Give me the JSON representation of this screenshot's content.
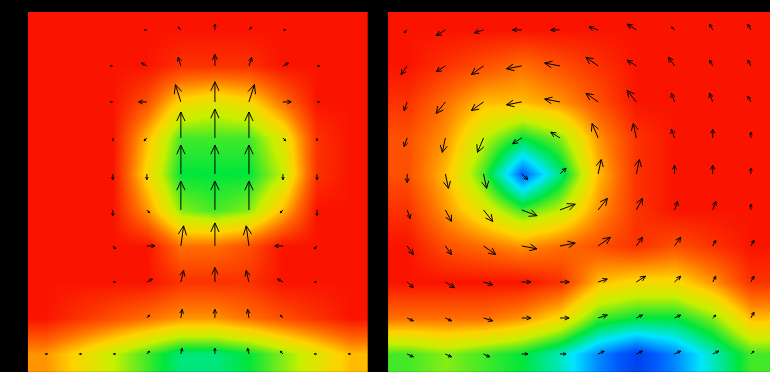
{
  "chart_data": [
    {
      "type": "heatmap",
      "tick_labels": false,
      "grid": false,
      "color": "#000000",
      "xlim": [
        -0.5,
        9.5
      ],
      "ylim": [
        -0.5,
        9.5
      ],
      "zlim": [
        0,
        1
      ],
      "z": [
        [
          0.8,
          0.7,
          0.6,
          0.5,
          0.4,
          0.4,
          0.45,
          0.55,
          0.65,
          0.75
        ],
        [
          1,
          0.95,
          0.9,
          0.85,
          0.8,
          0.8,
          0.85,
          0.9,
          0.95,
          1
        ],
        [
          1,
          1,
          1,
          1,
          0.95,
          0.95,
          0.95,
          1,
          1,
          1
        ],
        [
          1,
          1,
          1,
          1,
          0.85,
          0.85,
          0.9,
          1,
          1,
          1
        ],
        [
          1,
          1,
          1,
          0.8,
          0.55,
          0.5,
          0.55,
          0.75,
          1,
          1
        ],
        [
          1,
          1,
          1,
          0.7,
          0.45,
          0.45,
          0.45,
          0.6,
          0.95,
          1
        ],
        [
          1,
          1,
          1,
          0.75,
          0.5,
          0.5,
          0.5,
          0.65,
          0.95,
          1
        ],
        [
          1,
          1,
          1,
          0.9,
          0.7,
          0.65,
          0.7,
          0.85,
          1,
          1
        ],
        [
          1,
          1,
          1,
          1,
          0.95,
          0.95,
          0.95,
          1,
          1,
          1
        ],
        [
          1,
          1,
          1,
          1,
          1,
          1,
          1,
          1,
          1,
          1
        ]
      ],
      "u": [
        [
          0.1,
          0.1,
          0.1,
          0.1,
          0.05,
          0,
          -0.05,
          -0.1,
          -0.1,
          -0.1
        ],
        [
          0,
          0,
          0,
          0.1,
          0.05,
          0,
          -0.05,
          -0.1,
          0,
          0
        ],
        [
          0,
          0,
          0.1,
          0.2,
          0.1,
          0,
          -0.1,
          -0.2,
          -0.1,
          0
        ],
        [
          0,
          0,
          0.1,
          0.3,
          0.1,
          0,
          -0.1,
          -0.3,
          -0.1,
          0
        ],
        [
          0,
          0,
          0,
          0.1,
          0,
          0,
          0,
          -0.1,
          0,
          0
        ],
        [
          0,
          0,
          0,
          0,
          0,
          0,
          0,
          0,
          0,
          0
        ],
        [
          0,
          0,
          0,
          -0.1,
          0,
          0,
          0,
          0.1,
          0,
          0
        ],
        [
          0,
          0,
          -0.1,
          -0.3,
          -0.2,
          0,
          0.2,
          0.3,
          0.1,
          0
        ],
        [
          0,
          0,
          -0.1,
          -0.2,
          -0.1,
          0,
          0.1,
          0.2,
          0.1,
          0
        ],
        [
          0,
          0,
          0,
          -0.1,
          -0.1,
          0,
          0.1,
          0.1,
          0,
          0
        ]
      ],
      "v": [
        [
          0,
          0,
          0,
          0.1,
          0.2,
          0.2,
          0.2,
          0.1,
          0,
          0
        ],
        [
          0,
          0,
          0,
          0.1,
          0.3,
          0.3,
          0.3,
          0.1,
          0,
          0
        ],
        [
          0,
          0,
          0,
          0.1,
          0.4,
          0.5,
          0.4,
          0.1,
          0,
          0
        ],
        [
          0,
          0,
          -0.1,
          0,
          0.7,
          0.8,
          0.7,
          0,
          -0.1,
          0
        ],
        [
          0,
          0,
          -0.2,
          -0.1,
          1,
          1,
          1,
          -0.1,
          -0.2,
          0
        ],
        [
          0,
          0,
          -0.2,
          -0.2,
          1,
          1,
          1,
          -0.2,
          -0.2,
          0
        ],
        [
          0,
          0,
          -0.1,
          -0.1,
          0.9,
          1,
          0.9,
          -0.1,
          -0.1,
          0
        ],
        [
          0,
          0,
          0,
          0,
          0.6,
          0.7,
          0.6,
          0,
          0,
          0
        ],
        [
          0,
          0,
          0,
          0.1,
          0.3,
          0.4,
          0.3,
          0.1,
          0,
          0
        ],
        [
          0,
          0,
          0,
          0,
          0.1,
          0.2,
          0.1,
          0,
          0,
          0
        ]
      ]
    },
    {
      "type": "heatmap",
      "tick_labels": false,
      "grid": false,
      "color": "#000000",
      "xlim": [
        -0.5,
        9.5
      ],
      "ylim": [
        -0.5,
        9.5
      ],
      "zlim": [
        0,
        1
      ],
      "z": [
        [
          0.5,
          0.55,
          0.5,
          0.45,
          0.35,
          0.2,
          0.1,
          0.2,
          0.35,
          0.5
        ],
        [
          0.85,
          0.85,
          0.85,
          0.8,
          0.7,
          0.5,
          0.45,
          0.45,
          0.55,
          0.75
        ],
        [
          1,
          1,
          1,
          1,
          0.95,
          0.75,
          0.7,
          0.7,
          0.8,
          0.95
        ],
        [
          1,
          0.9,
          0.85,
          0.8,
          0.85,
          0.9,
          0.95,
          0.9,
          0.95,
          1
        ],
        [
          0.95,
          0.8,
          0.65,
          0.5,
          0.6,
          0.8,
          0.95,
          1,
          1,
          1
        ],
        [
          0.9,
          0.75,
          0.5,
          0.15,
          0.4,
          0.75,
          0.95,
          1,
          1,
          1
        ],
        [
          0.9,
          0.8,
          0.6,
          0.45,
          0.55,
          0.8,
          0.95,
          1,
          1,
          1
        ],
        [
          0.95,
          0.85,
          0.75,
          0.75,
          0.8,
          0.9,
          1,
          1,
          1,
          1
        ],
        [
          1,
          0.95,
          0.9,
          0.85,
          0.9,
          0.95,
          1,
          1,
          1,
          1
        ],
        [
          1,
          1,
          1,
          1,
          1,
          1,
          1,
          1,
          1,
          1
        ]
      ],
      "u": [
        [
          0.2,
          0.2,
          0.2,
          0.2,
          0.2,
          0.2,
          0.2,
          0.2,
          0.2,
          0.1
        ],
        [
          0.2,
          0.2,
          0.3,
          0.3,
          0.3,
          0.3,
          0.2,
          0.2,
          0.1,
          0.1
        ],
        [
          0.2,
          0.3,
          0.3,
          0.3,
          0.3,
          0.3,
          0.3,
          0.2,
          0.1,
          0.1
        ],
        [
          0.2,
          0.2,
          0.4,
          0.5,
          0.5,
          0.4,
          0.2,
          0.2,
          0.1,
          0.1
        ],
        [
          0.1,
          0.2,
          0.3,
          0.5,
          0.5,
          0.3,
          0.2,
          0.1,
          0.1,
          0
        ],
        [
          0,
          0.1,
          0.1,
          0.2,
          0.2,
          0.1,
          0.1,
          0,
          0,
          0
        ],
        [
          -0.1,
          -0.1,
          -0.2,
          -0.3,
          -0.3,
          -0.2,
          -0.1,
          -0.1,
          0,
          0
        ],
        [
          -0.1,
          -0.3,
          -0.4,
          -0.5,
          -0.5,
          -0.4,
          -0.3,
          -0.1,
          -0.1,
          -0.1
        ],
        [
          -0.2,
          -0.3,
          -0.4,
          -0.5,
          -0.5,
          -0.4,
          -0.3,
          -0.2,
          -0.1,
          -0.1
        ],
        [
          -0.1,
          -0.3,
          -0.3,
          -0.3,
          -0.3,
          -0.3,
          -0.3,
          -0.1,
          -0.1,
          -0.1
        ]
      ],
      "v": [
        [
          -0.1,
          -0.1,
          -0.1,
          0,
          0,
          0.1,
          0.1,
          0.1,
          0.1,
          0.1
        ],
        [
          -0.1,
          -0.1,
          -0.1,
          0,
          0,
          0.1,
          0.1,
          0.1,
          0.1,
          0.2
        ],
        [
          -0.2,
          -0.2,
          -0.1,
          0,
          0,
          0.1,
          0.2,
          0.2,
          0.2,
          0.2
        ],
        [
          -0.3,
          -0.3,
          -0.3,
          -0.1,
          0.1,
          0.3,
          0.3,
          0.3,
          0.2,
          0.2
        ],
        [
          -0.3,
          -0.4,
          -0.4,
          -0.2,
          0.2,
          0.4,
          0.4,
          0.3,
          0.3,
          0.2
        ],
        [
          -0.3,
          -0.5,
          -0.5,
          -0.2,
          0.2,
          0.5,
          0.5,
          0.3,
          0.3,
          0.2
        ],
        [
          -0.3,
          -0.5,
          -0.5,
          -0.2,
          0.2,
          0.5,
          0.5,
          0.3,
          0.3,
          0.2
        ],
        [
          -0.3,
          -0.4,
          -0.3,
          -0.1,
          0.1,
          0.3,
          0.4,
          0.3,
          0.3,
          0.2
        ],
        [
          -0.3,
          -0.2,
          -0.3,
          -0.1,
          0.1,
          0.3,
          0.2,
          0.3,
          0.2,
          0.2
        ],
        [
          -0.1,
          -0.2,
          -0.1,
          0,
          0,
          0.1,
          0.2,
          0.1,
          0.2,
          0.2
        ]
      ]
    }
  ]
}
